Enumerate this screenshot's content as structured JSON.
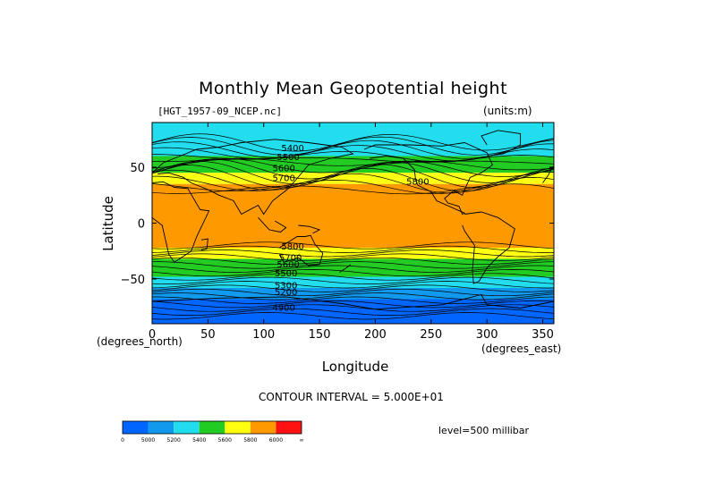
{
  "chart_data": {
    "type": "contour",
    "title": "Monthly Mean Geopotential height",
    "file_label": "[HGT_1957-09_NCEP.nc]",
    "units_label": "(units:m)",
    "xlabel": "Longitude",
    "ylabel": "Latitude",
    "x_units_left": "(degrees_north)",
    "x_units_right": "(degrees_east)",
    "xlim": [
      0,
      360
    ],
    "ylim": [
      -90,
      90
    ],
    "x_ticks": [
      0,
      50,
      100,
      150,
      200,
      250,
      300,
      350
    ],
    "y_ticks": [
      50,
      0,
      -50
    ],
    "y_tick_labels": [
      "50",
      "0",
      "−50"
    ],
    "contour_interval_text": "CONTOUR INTERVAL = 5.000E+01",
    "level_text": "level=500 millibar",
    "bands": [
      {
        "lat_min": 60,
        "lat_max": 90,
        "color": "#22ddee",
        "range": "5200-5400"
      },
      {
        "lat_min": 45,
        "lat_max": 60,
        "color": "#22cc22",
        "range": "5400-5600"
      },
      {
        "lat_min": 35,
        "lat_max": 45,
        "color": "#ffff11",
        "range": "5600-5800"
      },
      {
        "lat_min": -22,
        "lat_max": 35,
        "color": "#ff9900",
        "range": "5800-6000"
      },
      {
        "lat_min": -32,
        "lat_max": -22,
        "color": "#ffff11",
        "range": "5600-5800"
      },
      {
        "lat_min": -48,
        "lat_max": -32,
        "color": "#22cc22",
        "range": "5400-5600"
      },
      {
        "lat_min": -58,
        "lat_max": -48,
        "color": "#22ddee",
        "range": "5200-5400"
      },
      {
        "lat_min": -68,
        "lat_max": -58,
        "color": "#1199ee",
        "range": "5000-5200"
      },
      {
        "lat_min": -90,
        "lat_max": -68,
        "color": "#0066ff",
        "range": "4800-5000"
      }
    ],
    "contour_labels": [
      {
        "text": "5400",
        "lon": 126,
        "lat": 67
      },
      {
        "text": "5500",
        "lon": 122,
        "lat": 59
      },
      {
        "text": "5600",
        "lon": 118,
        "lat": 49
      },
      {
        "text": "5700",
        "lon": 118,
        "lat": 40
      },
      {
        "text": "5800",
        "lon": 238,
        "lat": 37
      },
      {
        "text": "5800",
        "lon": 126,
        "lat": -21
      },
      {
        "text": "5700",
        "lon": 124,
        "lat": -31
      },
      {
        "text": "5600",
        "lon": 122,
        "lat": -37
      },
      {
        "text": "5500",
        "lon": 120,
        "lat": -45
      },
      {
        "text": "5300",
        "lon": 120,
        "lat": -56
      },
      {
        "text": "5200",
        "lon": 120,
        "lat": -62
      },
      {
        "text": "4900",
        "lon": 118,
        "lat": -76
      }
    ],
    "colorbar": {
      "colors": [
        "#0066ff",
        "#1199ee",
        "#22ddee",
        "#22cc22",
        "#ffff11",
        "#ff9900",
        "#ff1111"
      ],
      "labels": [
        "0",
        "5000",
        "5200",
        "5400",
        "5600",
        "5800",
        "6000",
        "∞"
      ]
    }
  }
}
